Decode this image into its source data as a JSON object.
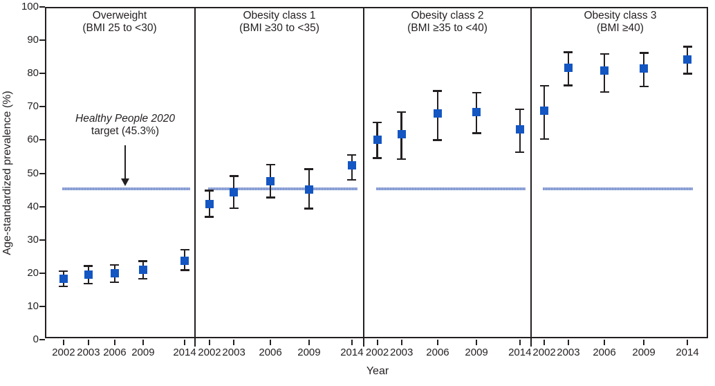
{
  "figure": {
    "y_axis_label": "Age-standardized prevalence (%)",
    "x_axis_label": "Year",
    "y_ticks": [
      0,
      10,
      20,
      30,
      40,
      50,
      60,
      70,
      80,
      90,
      100
    ],
    "annotation": {
      "line1": "Healthy People 2020",
      "line2": "target (45.3%)"
    },
    "colors": {
      "marker": "#1456c2",
      "target_line": "#94a8da",
      "target_line_texture": "#869cd2",
      "axis": "#231f20",
      "text": "#231f20",
      "background": "#ffffff"
    }
  },
  "chart_data": {
    "type": "scatter",
    "title": "",
    "xlabel": "Year",
    "ylabel": "Age-standardized prevalence (%)",
    "ylim": [
      0,
      100
    ],
    "x_categories": [
      "2002",
      "2003",
      "2006",
      "2009",
      "2014"
    ],
    "target_line_value": 45.3,
    "target_line_label": "Healthy People 2020 target (45.3%)",
    "marker_style": "filled-square-with-error-bars",
    "panels": [
      {
        "title": "Overweight",
        "subtitle": "(BMI 25 to <30)",
        "values": [
          18.3,
          19.6,
          19.9,
          21.0,
          23.7
        ],
        "ci_low": [
          16.0,
          16.8,
          17.2,
          18.2,
          20.8
        ],
        "ci_high": [
          20.6,
          22.2,
          22.5,
          23.7,
          27.1
        ]
      },
      {
        "title": "Obesity class 1",
        "subtitle": "(BMI ≥30 to <35)",
        "values": [
          40.7,
          44.3,
          47.6,
          45.2,
          52.4
        ],
        "ci_low": [
          36.8,
          39.5,
          42.7,
          39.3,
          48.0
        ],
        "ci_high": [
          44.9,
          49.2,
          52.7,
          51.3,
          55.6
        ]
      },
      {
        "title": "Obesity class 2",
        "subtitle": "(BMI ≥35 to <40)",
        "values": [
          60.1,
          61.7,
          67.9,
          68.4,
          63.1
        ],
        "ci_low": [
          54.5,
          54.2,
          59.9,
          62.0,
          56.3
        ],
        "ci_high": [
          65.3,
          68.5,
          74.8,
          74.3,
          69.3
        ]
      },
      {
        "title": "Obesity class 3",
        "subtitle": "(BMI ≥40)",
        "values": [
          68.8,
          81.7,
          80.8,
          81.6,
          84.3
        ],
        "ci_low": [
          60.2,
          76.3,
          74.4,
          76.0,
          79.9
        ],
        "ci_high": [
          76.3,
          86.4,
          85.9,
          86.2,
          88.1
        ]
      }
    ]
  }
}
